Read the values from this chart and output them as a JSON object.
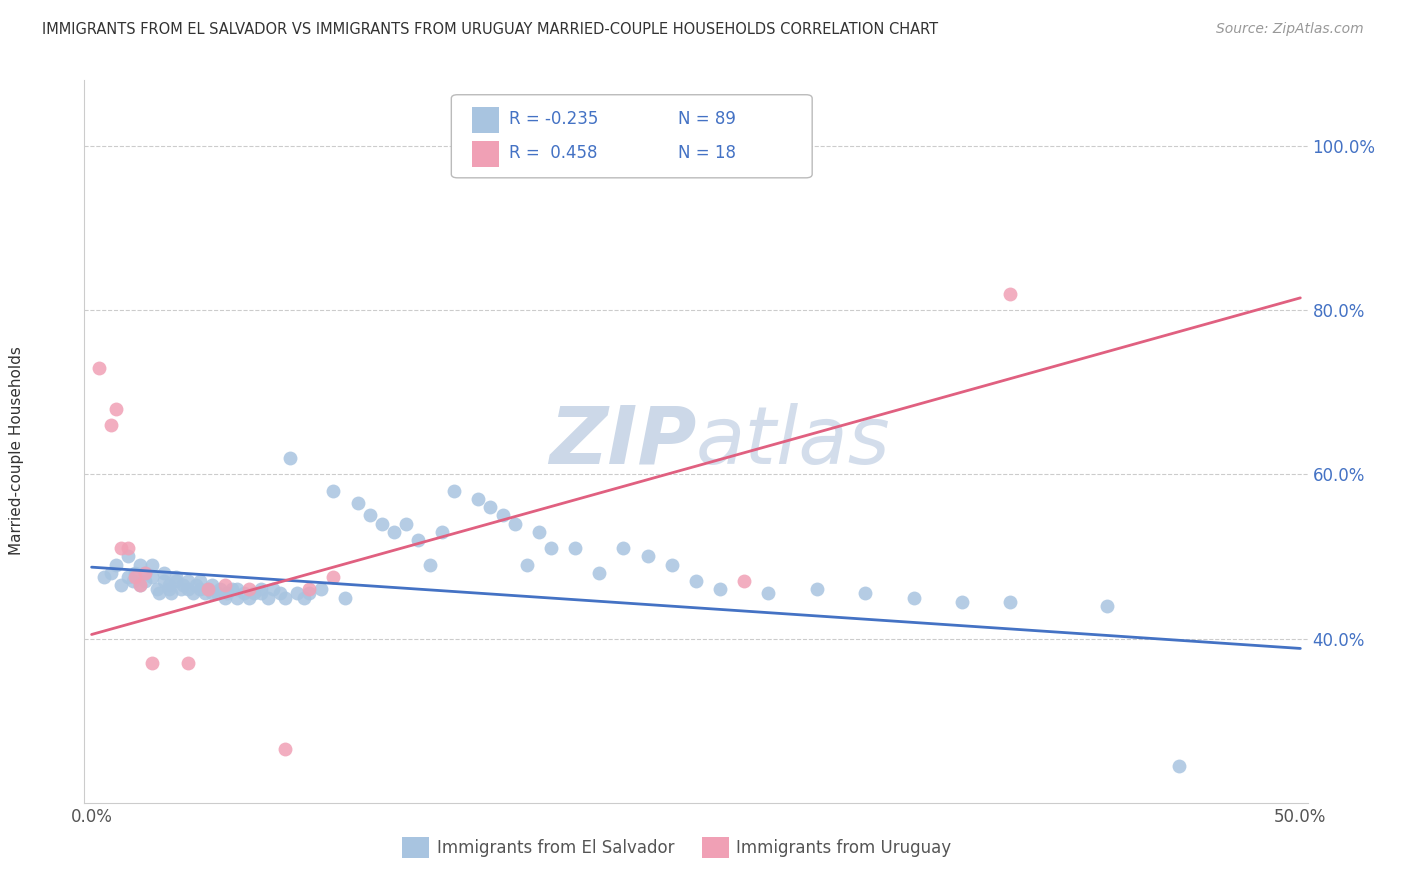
{
  "title": "IMMIGRANTS FROM EL SALVADOR VS IMMIGRANTS FROM URUGUAY MARRIED-COUPLE HOUSEHOLDS CORRELATION CHART",
  "source": "Source: ZipAtlas.com",
  "ylabel": "Married-couple Households",
  "legend_entries": [
    {
      "label": "Immigrants from El Salvador",
      "color": "#a8c4e0",
      "R": "-0.235",
      "N": "89"
    },
    {
      "label": "Immigrants from Uruguay",
      "color": "#f0a0b5",
      "R": "0.458",
      "N": "18"
    }
  ],
  "el_salvador_x": [
    0.005,
    0.008,
    0.01,
    0.012,
    0.015,
    0.015,
    0.017,
    0.018,
    0.02,
    0.02,
    0.022,
    0.022,
    0.025,
    0.025,
    0.027,
    0.028,
    0.03,
    0.03,
    0.032,
    0.032,
    0.033,
    0.035,
    0.035,
    0.037,
    0.038,
    0.04,
    0.04,
    0.042,
    0.043,
    0.045,
    0.045,
    0.047,
    0.048,
    0.05,
    0.05,
    0.052,
    0.053,
    0.055,
    0.056,
    0.058,
    0.06,
    0.06,
    0.063,
    0.065,
    0.067,
    0.07,
    0.07,
    0.073,
    0.075,
    0.078,
    0.08,
    0.082,
    0.085,
    0.088,
    0.09,
    0.095,
    0.1,
    0.105,
    0.11,
    0.115,
    0.12,
    0.125,
    0.13,
    0.135,
    0.14,
    0.145,
    0.15,
    0.16,
    0.165,
    0.17,
    0.175,
    0.18,
    0.185,
    0.19,
    0.2,
    0.21,
    0.22,
    0.23,
    0.24,
    0.25,
    0.26,
    0.28,
    0.3,
    0.32,
    0.34,
    0.36,
    0.38,
    0.42,
    0.45
  ],
  "el_salvador_y": [
    0.475,
    0.48,
    0.49,
    0.465,
    0.5,
    0.475,
    0.47,
    0.48,
    0.465,
    0.49,
    0.47,
    0.48,
    0.475,
    0.49,
    0.46,
    0.455,
    0.47,
    0.48,
    0.46,
    0.465,
    0.455,
    0.475,
    0.47,
    0.46,
    0.465,
    0.46,
    0.47,
    0.455,
    0.465,
    0.46,
    0.47,
    0.455,
    0.46,
    0.455,
    0.465,
    0.455,
    0.46,
    0.45,
    0.455,
    0.46,
    0.45,
    0.46,
    0.455,
    0.45,
    0.455,
    0.455,
    0.46,
    0.45,
    0.46,
    0.455,
    0.45,
    0.62,
    0.455,
    0.45,
    0.455,
    0.46,
    0.58,
    0.45,
    0.565,
    0.55,
    0.54,
    0.53,
    0.54,
    0.52,
    0.49,
    0.53,
    0.58,
    0.57,
    0.56,
    0.55,
    0.54,
    0.49,
    0.53,
    0.51,
    0.51,
    0.48,
    0.51,
    0.5,
    0.49,
    0.47,
    0.46,
    0.455,
    0.46,
    0.455,
    0.45,
    0.445,
    0.445,
    0.44,
    0.245
  ],
  "uruguay_x": [
    0.003,
    0.008,
    0.01,
    0.012,
    0.015,
    0.018,
    0.02,
    0.022,
    0.025,
    0.04,
    0.048,
    0.055,
    0.065,
    0.08,
    0.09,
    0.1,
    0.27,
    0.38
  ],
  "uruguay_y": [
    0.73,
    0.66,
    0.68,
    0.51,
    0.51,
    0.475,
    0.465,
    0.48,
    0.37,
    0.37,
    0.46,
    0.465,
    0.46,
    0.265,
    0.46,
    0.475,
    0.47,
    0.82
  ],
  "el_salvador_line_x": [
    0.0,
    0.5
  ],
  "el_salvador_line_y": [
    0.487,
    0.388
  ],
  "uruguay_line_x": [
    0.0,
    0.5
  ],
  "uruguay_line_y": [
    0.405,
    0.815
  ],
  "xlim": [
    -0.003,
    0.503
  ],
  "ylim": [
    0.2,
    1.08
  ],
  "yticks": [
    0.4,
    0.6,
    0.8,
    1.0
  ],
  "ytick_labels": [
    "40.0%",
    "60.0%",
    "80.0%",
    "100.0%"
  ],
  "xticks": [
    0.0,
    0.1,
    0.2,
    0.3,
    0.4,
    0.5
  ],
  "xtick_labels_show": [
    "0.0%",
    "",
    "",
    "",
    "",
    "50.0%"
  ],
  "scatter_size": 100,
  "el_salvador_color": "#a8c4e0",
  "uruguay_color": "#f0a0b5",
  "el_salvador_line_color": "#4472c4",
  "uruguay_line_color": "#e06080",
  "watermark_zip": "ZIP",
  "watermark_atlas": "atlas",
  "watermark_color": "#ccd8e8",
  "background_color": "#ffffff",
  "grid_color": "#cccccc",
  "spine_color": "#cccccc",
  "title_color": "#333333",
  "source_color": "#999999",
  "ytick_color": "#4472c4",
  "xtick_color": "#555555",
  "legend_R_color": "#4472c4",
  "legend_N_color": "#4472c4"
}
